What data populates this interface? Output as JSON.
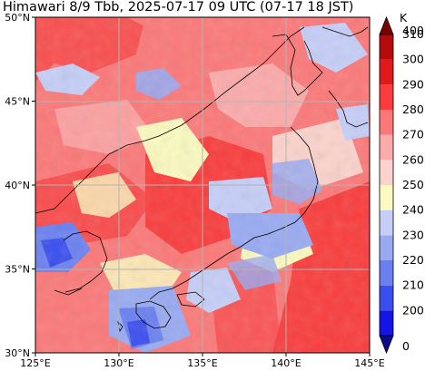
{
  "title": "Himawari 8/9 Tbb, 2025-07-17 09 UTC (07-17 18 JST)",
  "map": {
    "lon_range": [
      125,
      145
    ],
    "lat_range": [
      30,
      50
    ],
    "lon_ticks": [
      {
        "value": 125,
        "label": "125°E"
      },
      {
        "value": 130,
        "label": "130°E"
      },
      {
        "value": 135,
        "label": "135°E"
      },
      {
        "value": 140,
        "label": "140°E"
      },
      {
        "value": 145,
        "label": "145°E"
      }
    ],
    "lat_ticks": [
      {
        "value": 30,
        "label": "30°N"
      },
      {
        "value": 35,
        "label": "35°N"
      },
      {
        "value": 40,
        "label": "40°N"
      },
      {
        "value": 45,
        "label": "45°N"
      },
      {
        "value": 50,
        "label": "50°N"
      }
    ],
    "grid": true
  },
  "colorbar": {
    "unit": "K",
    "extend": "both",
    "levels": [
      200,
      210,
      220,
      230,
      240,
      250,
      260,
      270,
      280,
      290,
      300,
      310
    ],
    "labels": [
      "0",
      "200",
      "210",
      "220",
      "230",
      "240",
      "250",
      "260",
      "270",
      "280",
      "290",
      "300",
      "310",
      "400"
    ],
    "colors": [
      "#0a0a8c",
      "#1414e6",
      "#3a4ef0",
      "#6a80f0",
      "#98aaf2",
      "#c6cef8",
      "#fbfac0",
      "#fcd2cc",
      "#fcaaaa",
      "#fc7878",
      "#fa3c3c",
      "#e01a1a",
      "#b40a0a",
      "#7a0000"
    ]
  }
}
